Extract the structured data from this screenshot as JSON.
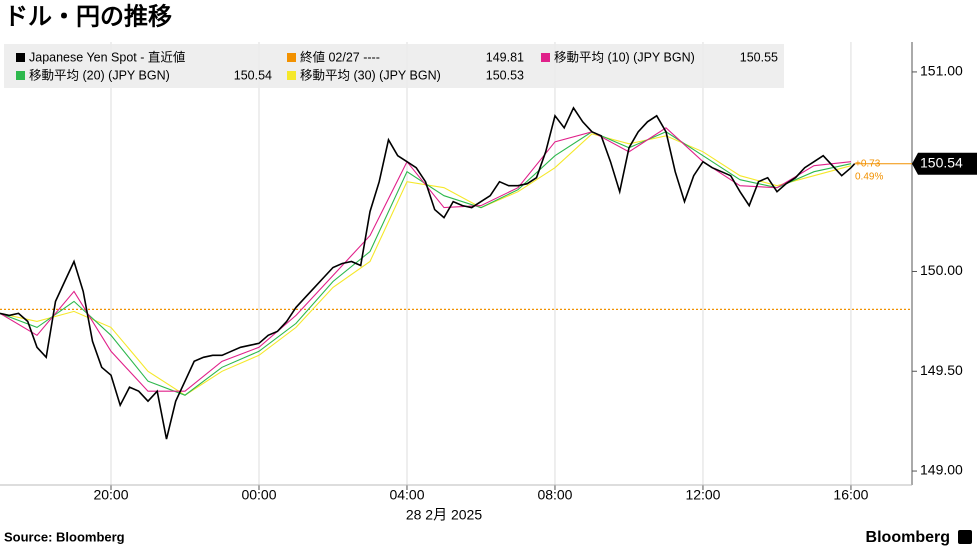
{
  "chart_data": {
    "type": "line",
    "title": "ドル・円の推移",
    "x_label": "28 2月 2025",
    "source": "Source: Bloomberg",
    "brand": "Bloomberg",
    "xlim": [
      -7.0,
      17.65
    ],
    "ylim": [
      148.93,
      151.15
    ],
    "xticks": [
      {
        "value": -4,
        "label": "20:00"
      },
      {
        "value": 0,
        "label": "00:00"
      },
      {
        "value": 4,
        "label": "04:00"
      },
      {
        "value": 8,
        "label": "08:00"
      },
      {
        "value": 12,
        "label": "12:00"
      },
      {
        "value": 16,
        "label": "16:00"
      }
    ],
    "yticks": [
      {
        "value": 149.0,
        "label": "149.00"
      },
      {
        "value": 149.5,
        "label": "149.50"
      },
      {
        "value": 150.0,
        "label": "150.00"
      },
      {
        "value": 151.0,
        "label": "151.00"
      }
    ],
    "grid": true,
    "reference": {
      "name": "終値 02/27 ----",
      "value": 149.81,
      "color": "#f29100"
    },
    "annotations": [
      "+0.73",
      "0.49%"
    ],
    "series": [
      {
        "name": "Japanese Yen Spot - 直近値",
        "color": "#000000",
        "x": [
          -7.0,
          -6.75,
          -6.5,
          -6.25,
          -6.0,
          -5.75,
          -5.5,
          -5.25,
          -5.0,
          -4.75,
          -4.5,
          -4.25,
          -4.0,
          -3.75,
          -3.5,
          -3.25,
          -3.0,
          -2.75,
          -2.5,
          -2.25,
          -2.0,
          -1.75,
          -1.5,
          -1.25,
          -1.0,
          -0.75,
          -0.5,
          -0.25,
          0.0,
          0.25,
          0.5,
          0.75,
          1.0,
          1.25,
          1.5,
          1.75,
          2.0,
          2.25,
          2.5,
          2.75,
          3.0,
          3.25,
          3.5,
          3.75,
          4.0,
          4.25,
          4.5,
          4.75,
          5.0,
          5.25,
          5.5,
          5.75,
          6.0,
          6.25,
          6.5,
          6.75,
          7.0,
          7.25,
          7.5,
          7.75,
          8.0,
          8.25,
          8.5,
          8.75,
          9.0,
          9.25,
          9.5,
          9.75,
          10.0,
          10.25,
          10.5,
          10.75,
          11.0,
          11.25,
          11.5,
          11.75,
          12.0,
          12.25,
          12.5,
          12.75,
          13.0,
          13.25,
          13.5,
          13.75,
          14.0,
          14.25,
          14.5,
          14.75,
          15.0,
          15.25,
          15.5,
          15.75,
          16.0,
          16.1
        ],
        "values": [
          149.79,
          149.78,
          149.79,
          149.75,
          149.62,
          149.57,
          149.85,
          149.95,
          150.05,
          149.9,
          149.65,
          149.52,
          149.48,
          149.33,
          149.42,
          149.4,
          149.35,
          149.4,
          149.16,
          149.35,
          149.45,
          149.55,
          149.57,
          149.58,
          149.58,
          149.6,
          149.62,
          149.63,
          149.64,
          149.68,
          149.7,
          149.75,
          149.82,
          149.87,
          149.92,
          149.97,
          150.02,
          150.04,
          150.05,
          150.03,
          150.3,
          150.45,
          150.66,
          150.58,
          150.55,
          150.52,
          150.45,
          150.31,
          150.27,
          150.35,
          150.33,
          150.32,
          150.35,
          150.38,
          150.45,
          150.43,
          150.43,
          150.44,
          150.47,
          150.6,
          150.78,
          150.72,
          150.82,
          150.75,
          150.7,
          150.68,
          150.55,
          150.4,
          150.62,
          150.7,
          150.75,
          150.78,
          150.7,
          150.5,
          150.35,
          150.48,
          150.55,
          150.52,
          150.5,
          150.48,
          150.4,
          150.33,
          150.45,
          150.47,
          150.4,
          150.44,
          150.47,
          150.52,
          150.55,
          150.58,
          150.53,
          150.48,
          150.52,
          150.54
        ]
      },
      {
        "name": "移動平均 (10) (JPY BGN)",
        "color": "#e0218a",
        "legend_value": 150.55,
        "x": [
          -7,
          -6,
          -5,
          -4,
          -3,
          -2,
          -1,
          0,
          1,
          2,
          3,
          4,
          5,
          6,
          7,
          8,
          9,
          10,
          11,
          12,
          13,
          14,
          15,
          16
        ],
        "values": [
          149.79,
          149.68,
          149.9,
          149.6,
          149.4,
          149.4,
          149.55,
          149.62,
          149.78,
          149.98,
          150.18,
          150.55,
          150.32,
          150.33,
          150.42,
          150.65,
          150.7,
          150.6,
          150.72,
          150.55,
          150.43,
          150.42,
          150.53,
          150.55
        ]
      },
      {
        "name": "移動平均 (20) (JPY BGN)",
        "color": "#2db84d",
        "legend_value": 150.54,
        "x": [
          -7,
          -6,
          -5,
          -4,
          -3,
          -2,
          -1,
          0,
          1,
          2,
          3,
          4,
          5,
          6,
          7,
          8,
          9,
          10,
          11,
          12,
          13,
          14,
          15,
          16
        ],
        "values": [
          149.79,
          149.72,
          149.85,
          149.68,
          149.45,
          149.38,
          149.52,
          149.6,
          149.74,
          149.95,
          150.1,
          150.5,
          150.38,
          150.32,
          150.41,
          150.58,
          150.7,
          150.62,
          150.7,
          150.58,
          150.46,
          150.42,
          150.5,
          150.54
        ]
      },
      {
        "name": "移動平均 (30) (JPY BGN)",
        "color": "#f5e82a",
        "legend_value": 150.53,
        "x": [
          -7,
          -6,
          -5,
          -4,
          -3,
          -2,
          -1,
          0,
          1,
          2,
          3,
          4,
          5,
          6,
          7,
          8,
          9,
          10,
          11,
          12,
          13,
          14,
          15,
          16
        ],
        "values": [
          149.79,
          149.75,
          149.8,
          149.72,
          149.5,
          149.38,
          149.5,
          149.58,
          149.72,
          149.92,
          150.05,
          150.45,
          150.42,
          150.32,
          150.4,
          150.52,
          150.69,
          150.64,
          150.68,
          150.6,
          150.48,
          150.43,
          150.48,
          150.53
        ]
      }
    ]
  }
}
